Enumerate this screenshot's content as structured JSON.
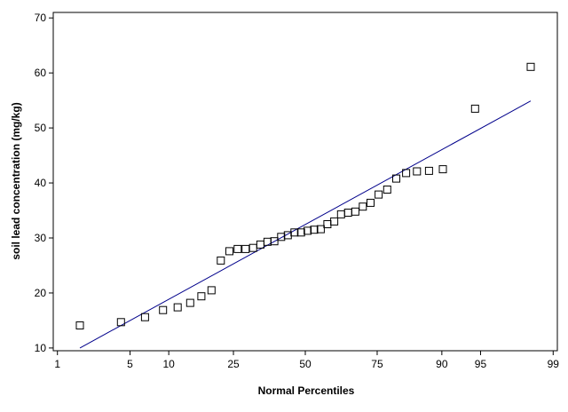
{
  "chart_data": {
    "type": "scatter",
    "title": "",
    "xlabel": "Normal Percentiles",
    "ylabel": "soil lead concentration (mg/kg)",
    "x_scale": "normal-probability",
    "x_ticks": [
      1,
      5,
      10,
      25,
      50,
      75,
      90,
      95,
      99
    ],
    "x_tick_labels": [
      "1",
      "5",
      "10",
      "25",
      "50",
      "75",
      "90",
      "95",
      "99"
    ],
    "xlim": [
      0.9,
      99.1
    ],
    "y_ticks": [
      10,
      20,
      30,
      40,
      50,
      60,
      70
    ],
    "y_tick_labels": [
      "10",
      "20",
      "30",
      "40",
      "50",
      "60",
      "70"
    ],
    "ylim": [
      9.5,
      71
    ],
    "grid": false,
    "colors": {
      "points": "#000000",
      "fit_line": "#00008b",
      "axes": "#000000"
    },
    "points": [
      {
        "x": 1.72,
        "y": 14.1
      },
      {
        "x": 4.18,
        "y": 14.7
      },
      {
        "x": 6.63,
        "y": 15.6
      },
      {
        "x": 9.09,
        "y": 16.9
      },
      {
        "x": 11.55,
        "y": 17.4
      },
      {
        "x": 14.0,
        "y": 18.2
      },
      {
        "x": 16.46,
        "y": 19.4
      },
      {
        "x": 18.92,
        "y": 20.5
      },
      {
        "x": 21.38,
        "y": 25.9
      },
      {
        "x": 23.83,
        "y": 27.6
      },
      {
        "x": 26.29,
        "y": 28.0
      },
      {
        "x": 28.75,
        "y": 28.0
      },
      {
        "x": 31.2,
        "y": 28.2
      },
      {
        "x": 33.66,
        "y": 28.8
      },
      {
        "x": 36.12,
        "y": 29.3
      },
      {
        "x": 38.57,
        "y": 29.4
      },
      {
        "x": 41.03,
        "y": 30.2
      },
      {
        "x": 43.49,
        "y": 30.5
      },
      {
        "x": 45.95,
        "y": 31.0
      },
      {
        "x": 48.4,
        "y": 31.0
      },
      {
        "x": 50.86,
        "y": 31.3
      },
      {
        "x": 53.32,
        "y": 31.5
      },
      {
        "x": 55.77,
        "y": 31.6
      },
      {
        "x": 58.23,
        "y": 32.5
      },
      {
        "x": 60.69,
        "y": 33.0
      },
      {
        "x": 63.15,
        "y": 34.3
      },
      {
        "x": 65.6,
        "y": 34.6
      },
      {
        "x": 68.06,
        "y": 34.8
      },
      {
        "x": 70.52,
        "y": 35.7
      },
      {
        "x": 72.97,
        "y": 36.4
      },
      {
        "x": 75.43,
        "y": 37.9
      },
      {
        "x": 77.89,
        "y": 38.8
      },
      {
        "x": 80.35,
        "y": 40.8
      },
      {
        "x": 82.8,
        "y": 41.8
      },
      {
        "x": 85.26,
        "y": 42.1
      },
      {
        "x": 87.72,
        "y": 42.2
      },
      {
        "x": 90.17,
        "y": 42.5
      },
      {
        "x": 94.45,
        "y": 53.5
      },
      {
        "x": 98.28,
        "y": 61.1
      }
    ],
    "fit_line": {
      "x": [
        1.72,
        98.28
      ],
      "y": [
        10.0,
        54.9
      ]
    }
  }
}
